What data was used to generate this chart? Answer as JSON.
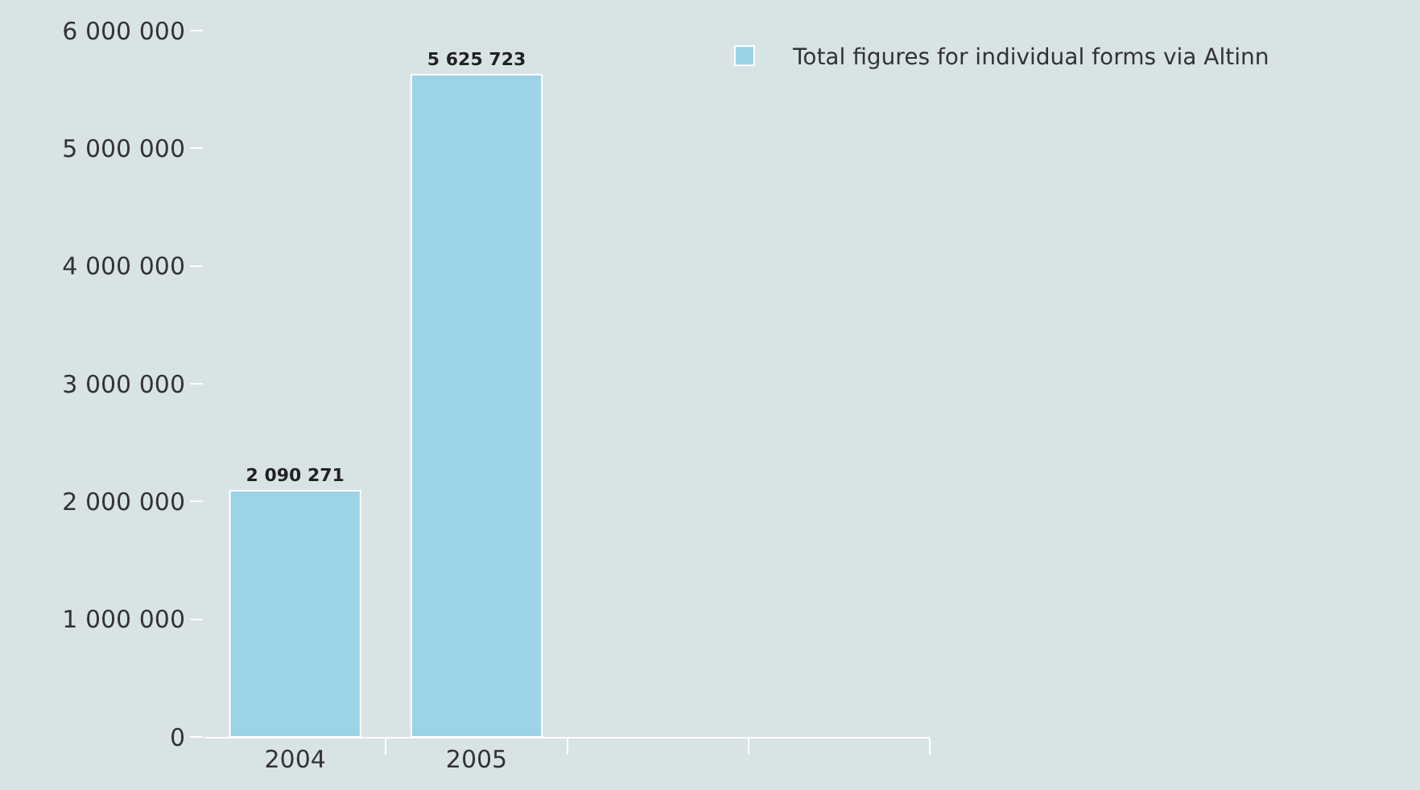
{
  "chart_data": {
    "type": "bar",
    "categories": [
      "2004",
      "2005",
      null,
      null
    ],
    "series": [
      {
        "name": "Total figures for individual forms via Altinn",
        "color": "#9cd3e7",
        "values": [
          2090271,
          5625723,
          null,
          null
        ],
        "value_labels": [
          "2 090 271",
          "5 625 723",
          null,
          null
        ]
      }
    ],
    "ylim": [
      0,
      6000000
    ],
    "yticks": [
      {
        "value": 0,
        "label": "0"
      },
      {
        "value": 1000000,
        "label": "1 000 000"
      },
      {
        "value": 2000000,
        "label": "2 000 000"
      },
      {
        "value": 3000000,
        "label": "3 000 000"
      },
      {
        "value": 4000000,
        "label": "4 000 000"
      },
      {
        "value": 5000000,
        "label": "5 000 000"
      },
      {
        "value": 6000000,
        "label": "6 000 000"
      }
    ],
    "grid": false,
    "legend": "top right"
  }
}
